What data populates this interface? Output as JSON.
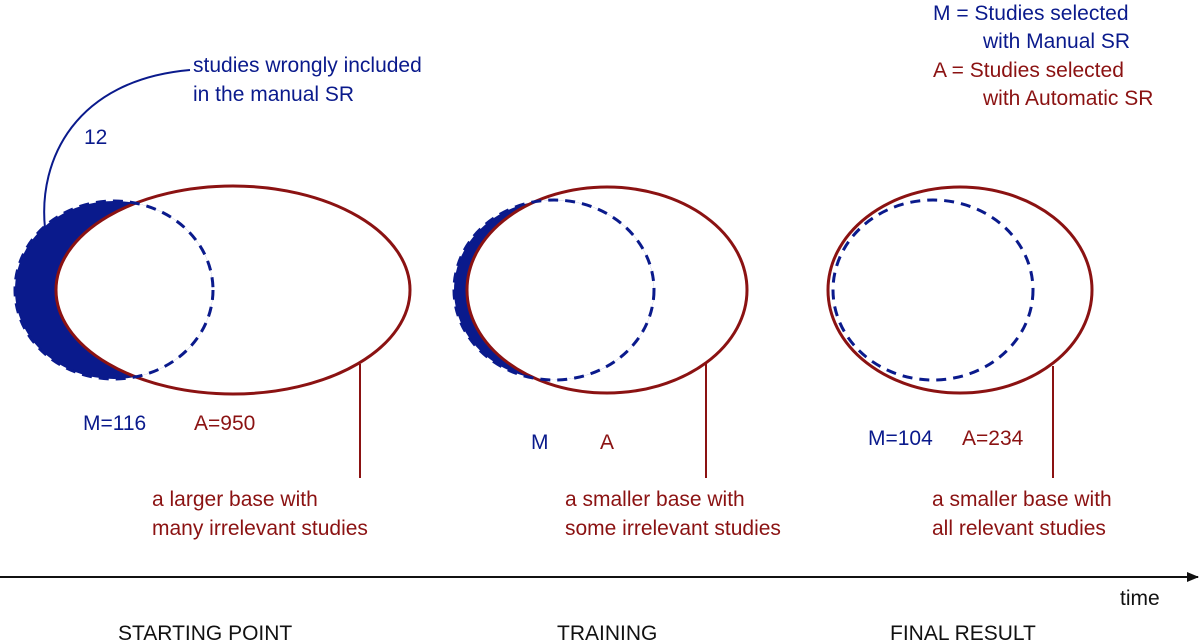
{
  "colors": {
    "manual": "#0a1a8c",
    "automatic": "#8b1212",
    "axis": "#111111"
  },
  "legend": {
    "m_line1": "M = Studies selected",
    "m_line2": "with Manual SR",
    "a_line1": "A = Studies selected",
    "a_line2": "with Automatic SR"
  },
  "callout": {
    "line1": "studies wrongly included",
    "line2": "in the manual SR",
    "count": "12"
  },
  "stages": [
    {
      "m_label": "M=116",
      "a_label": "A=950",
      "desc_line1": "a larger base with",
      "desc_line2": "many irrelevant studies",
      "stage_label": "STARTING POINT"
    },
    {
      "m_label": "M",
      "a_label": "A",
      "desc_line1": "a smaller base with",
      "desc_line2": "some irrelevant studies",
      "stage_label": "TRAINING"
    },
    {
      "m_label": "M=104",
      "a_label": "A=234",
      "desc_line1": "a smaller base with",
      "desc_line2": "all relevant studies",
      "stage_label": "FINAL RESULT"
    }
  ],
  "axis": {
    "label": "time"
  }
}
